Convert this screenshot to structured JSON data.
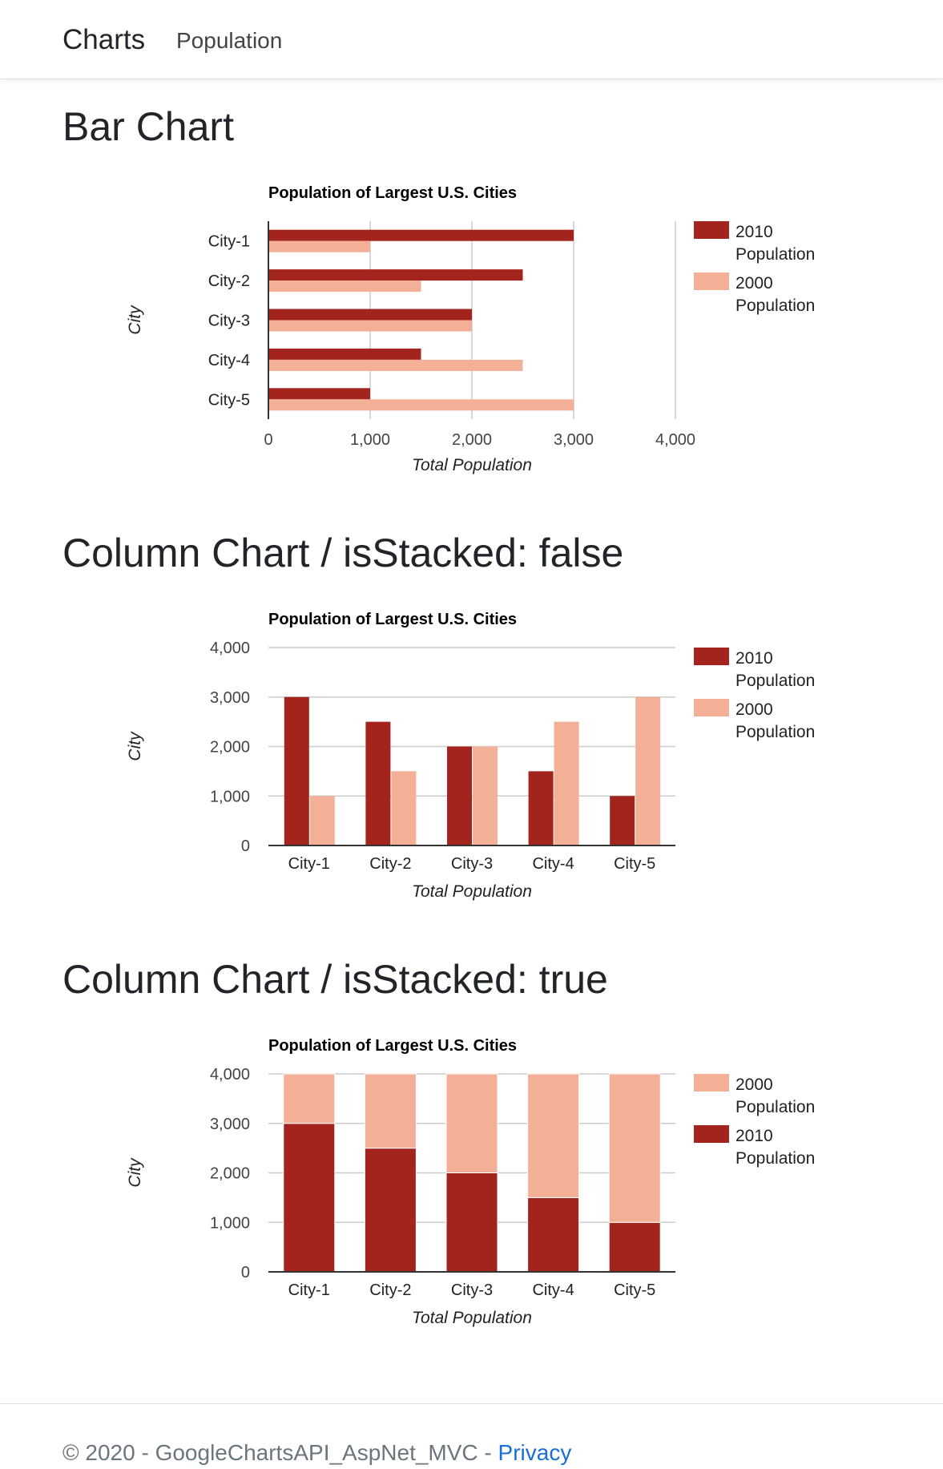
{
  "navbar": {
    "brand": "Charts",
    "links": [
      "Population"
    ]
  },
  "sections": [
    {
      "title": "Bar Chart"
    },
    {
      "title": "Column Chart / isStacked: false"
    },
    {
      "title": "Column Chart / isStacked: true"
    }
  ],
  "colors": {
    "pop2010": "#a3241c",
    "pop2000": "#f4af97",
    "axis": "#333333",
    "grid": "#cccccc",
    "link": "#1a6ed8"
  },
  "chart_data": [
    {
      "type": "bar",
      "orientation": "horizontal",
      "title": "Population of Largest U.S. Cities",
      "xlabel": "Total Population",
      "ylabel": "City",
      "categories": [
        "City-1",
        "City-2",
        "City-3",
        "City-4",
        "City-5"
      ],
      "series": [
        {
          "name": "2010 Population",
          "values": [
            3000,
            2500,
            2000,
            1500,
            1000
          ]
        },
        {
          "name": "2000 Population",
          "values": [
            1000,
            1500,
            2000,
            2500,
            3000
          ]
        }
      ],
      "value_ticks": [
        "0",
        "1,000",
        "2,000",
        "3,000",
        "4,000"
      ],
      "vlim": [
        0,
        4000
      ],
      "grid": true,
      "legend_position": "right",
      "stacked": false
    },
    {
      "type": "bar",
      "orientation": "vertical",
      "title": "Population of Largest U.S. Cities",
      "xlabel": "Total Population",
      "ylabel": "City",
      "categories": [
        "City-1",
        "City-2",
        "City-3",
        "City-4",
        "City-5"
      ],
      "series": [
        {
          "name": "2010 Population",
          "values": [
            3000,
            2500,
            2000,
            1500,
            1000
          ]
        },
        {
          "name": "2000 Population",
          "values": [
            1000,
            1500,
            2000,
            2500,
            3000
          ]
        }
      ],
      "value_ticks": [
        "0",
        "1,000",
        "2,000",
        "3,000",
        "4,000"
      ],
      "vlim": [
        0,
        4000
      ],
      "grid": true,
      "legend_position": "right",
      "stacked": false
    },
    {
      "type": "bar",
      "orientation": "vertical",
      "title": "Population of Largest U.S. Cities",
      "xlabel": "Total Population",
      "ylabel": "City",
      "categories": [
        "City-1",
        "City-2",
        "City-3",
        "City-4",
        "City-5"
      ],
      "series": [
        {
          "name": "2010 Population",
          "values": [
            3000,
            2500,
            2000,
            1500,
            1000
          ]
        },
        {
          "name": "2000 Population",
          "values": [
            1000,
            1500,
            2000,
            2500,
            3000
          ]
        }
      ],
      "value_ticks": [
        "0",
        "1,000",
        "2,000",
        "3,000",
        "4,000"
      ],
      "vlim": [
        0,
        4000
      ],
      "grid": true,
      "legend_position": "right",
      "legend_order": [
        "2000 Population",
        "2010 Population"
      ],
      "stacked": true
    }
  ],
  "footer": {
    "text": "© 2020 - GoogleChartsAPI_AspNet_MVC - ",
    "link": "Privacy"
  }
}
